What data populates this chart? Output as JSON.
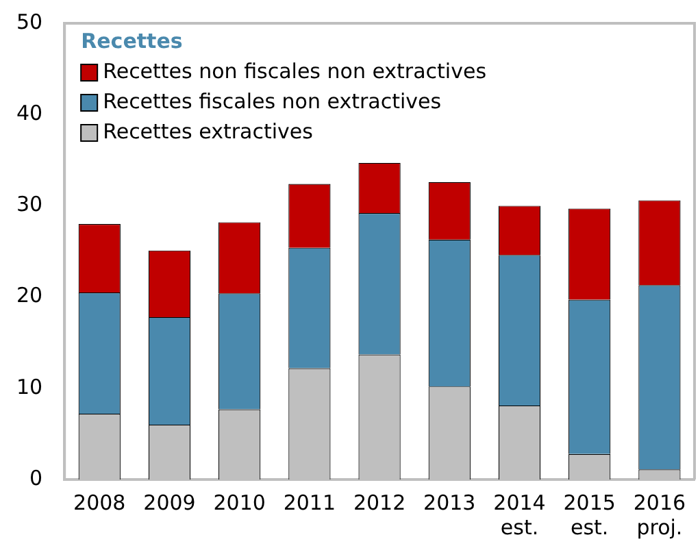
{
  "chart_data": {
    "type": "bar",
    "stacked": true,
    "legend_title": "Recettes",
    "legend": "top left",
    "grid": false,
    "categories": [
      "2008",
      "2009",
      "2010",
      "2011",
      "2012",
      "2013",
      "2014\nest.",
      "2015\nest.",
      "2016\nproj."
    ],
    "ylim": [
      0,
      50
    ],
    "yticks": [
      0,
      10,
      20,
      30,
      40,
      50
    ],
    "series": [
      {
        "name": "Recettes extractives",
        "color": "#bfbfbf",
        "values": [
          7.2,
          6.0,
          7.7,
          12.2,
          13.7,
          10.2,
          8.1,
          2.8,
          1.1
        ]
      },
      {
        "name": "Recettes fiscales non extractives",
        "color": "#4a89ad",
        "values": [
          13.3,
          11.8,
          12.7,
          13.2,
          15.5,
          16.1,
          16.5,
          16.9,
          20.2
        ]
      },
      {
        "name": "Recettes non fiscales non extractives",
        "color": "#c00000",
        "values": [
          7.5,
          7.3,
          7.8,
          7.0,
          5.5,
          6.3,
          5.4,
          10.0,
          9.3
        ]
      }
    ]
  }
}
